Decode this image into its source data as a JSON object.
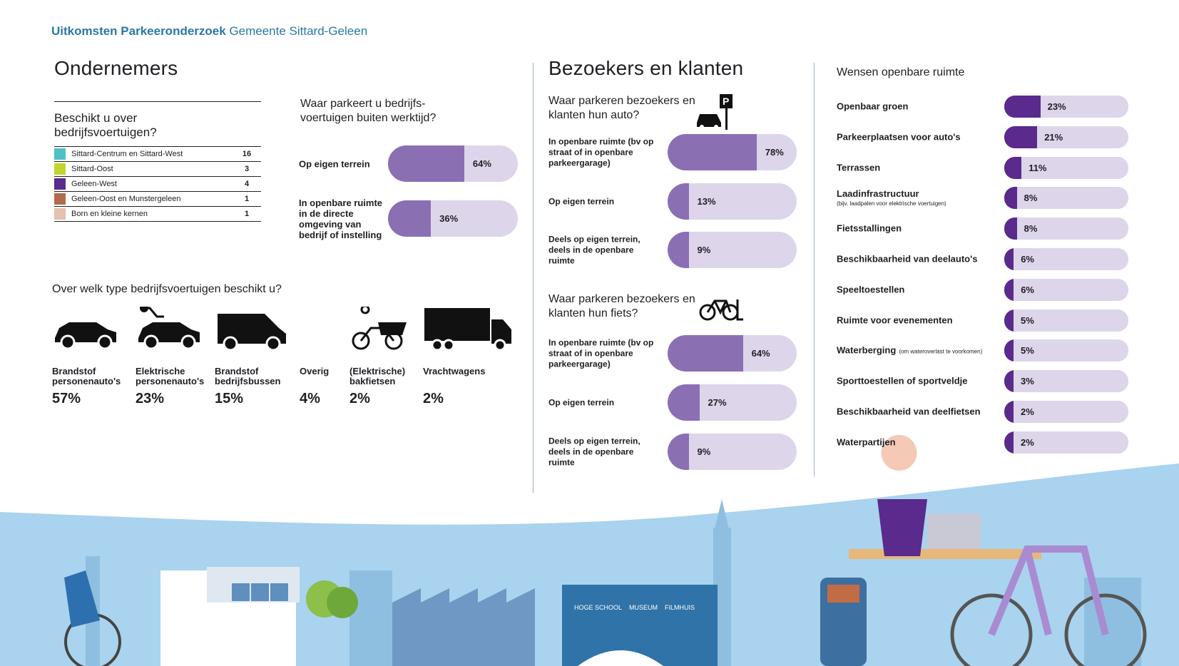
{
  "header": {
    "bold": "Uitkomsten Parkeeronderzoek",
    "normal": "Gemeente Sittard-Geleen"
  },
  "ondernemers": {
    "title": "Ondernemers",
    "q1": {
      "title": "Beschikt u over bedrijfsvoertuigen?",
      "rows": [
        {
          "label": "Sittard-Centrum en Sittard-West",
          "value": "16",
          "color": "#4fc0c4"
        },
        {
          "label": "Sittard-Oost",
          "value": "3",
          "color": "#c3d62e"
        },
        {
          "label": "Geleen-West",
          "value": "4",
          "color": "#5a2a8c"
        },
        {
          "label": "Geleen-Oost en Munstergeleen",
          "value": "1",
          "color": "#b36a4c"
        },
        {
          "label": "Born en kleine kernen",
          "value": "1",
          "color": "#e6c0b0"
        }
      ]
    },
    "q2": {
      "title": "Waar parkeert u bedrijfs-voertuigen buiten werktijd?",
      "bars": [
        {
          "label": "Op eigen terrein",
          "value": 64,
          "text": "64%"
        },
        {
          "label": "In openbare ruimte in de directe omgeving van bedrijf of instelling",
          "value": 36,
          "text": "36%"
        }
      ]
    },
    "q3": {
      "title": "Over welk type bedrijfsvoertuigen beschikt u?",
      "items": [
        {
          "label": "Brandstof personenauto's",
          "value": "57%",
          "icon": "car-icon"
        },
        {
          "label": "Elektrische personenauto's",
          "value": "23%",
          "icon": "electric-car-icon"
        },
        {
          "label": "Brandstof bedrijfsbussen",
          "value": "15%",
          "icon": "van-icon"
        },
        {
          "label": "Overig",
          "value": "4%",
          "icon": ""
        },
        {
          "label": "(Elektrische) bakfietsen",
          "value": "2%",
          "icon": "cargo-bike-icon"
        },
        {
          "label": "Vrachtwagens",
          "value": "2%",
          "icon": "truck-icon"
        }
      ]
    }
  },
  "bezoekers": {
    "title": "Bezoekers en klanten",
    "auto": {
      "title": "Waar parkeren bezoekers en klanten hun auto?",
      "icon": "parking-car-icon",
      "bars": [
        {
          "label": "In openbare ruimte (bv op straat of in openbare parkeergarage)",
          "value": 78,
          "text": "78%"
        },
        {
          "label": "Op eigen terrein",
          "value": 13,
          "text": "13%"
        },
        {
          "label": "Deels op eigen terrein, deels in de openbare ruimte",
          "value": 9,
          "text": "9%"
        }
      ]
    },
    "fiets": {
      "title": "Waar parkeren bezoekers en klanten hun fiets?",
      "icon": "bicycle-icon",
      "bars": [
        {
          "label": "In openbare ruimte (bv op straat of in openbare parkeergarage)",
          "value": 64,
          "text": "64%"
        },
        {
          "label": "Op eigen terrein",
          "value": 27,
          "text": "27%"
        },
        {
          "label": "Deels op eigen terrein, deels in de openbare ruimte",
          "value": 9,
          "text": "9%"
        }
      ]
    }
  },
  "wensen": {
    "title": "Wensen openbare ruimte",
    "rows": [
      {
        "label": "Openbaar groen",
        "note": "",
        "value": 23,
        "text": "23%"
      },
      {
        "label": "Parkeerplaatsen voor auto's",
        "note": "",
        "value": 21,
        "text": "21%"
      },
      {
        "label": "Terrassen",
        "note": "",
        "value": 11,
        "text": "11%"
      },
      {
        "label": "Laadinfrastructuur",
        "note": "(bijv. laadpalen voor elektrische voertuigen)",
        "value": 8,
        "text": "8%"
      },
      {
        "label": "Fietsstallingen",
        "note": "",
        "value": 8,
        "text": "8%"
      },
      {
        "label": "Beschikbaarheid van deelauto's",
        "note": "",
        "value": 6,
        "text": "6%"
      },
      {
        "label": "Speeltoestellen",
        "note": "",
        "value": 6,
        "text": "6%"
      },
      {
        "label": "Ruimte voor evenementen",
        "note": "",
        "value": 5,
        "text": "5%"
      },
      {
        "label": "Waterberging",
        "note": "(om wateroverlast te voorkomen)",
        "value": 5,
        "text": "5%"
      },
      {
        "label": "Sporttoestellen of sportveldje",
        "note": "",
        "value": 3,
        "text": "3%"
      },
      {
        "label": "Beschikbaarheid van deelfietsen",
        "note": "",
        "value": 2,
        "text": "2%"
      },
      {
        "label": "Waterpartijen",
        "note": "",
        "value": 2,
        "text": "2%"
      }
    ]
  },
  "illustration": {
    "signs": [
      "HOGE SCHOOL",
      "MUSEUM",
      "FILMHUIS"
    ]
  },
  "colors": {
    "header": "#2a78a8",
    "bar_mid": "#8b6fb3",
    "bar_dark": "#5a2a8c",
    "track": "#ddd5ea",
    "sky": "#a9d3ee"
  },
  "chart_data": [
    {
      "type": "bar",
      "title": "Beschikt u over bedrijfsvoertuigen?",
      "categories": [
        "Sittard-Centrum en Sittard-West",
        "Sittard-Oost",
        "Geleen-West",
        "Geleen-Oost en Munstergeleen",
        "Born en kleine kernen"
      ],
      "values": [
        16,
        3,
        4,
        1,
        1
      ]
    },
    {
      "type": "bar",
      "title": "Waar parkeert u bedrijfs-voertuigen buiten werktijd?",
      "categories": [
        "Op eigen terrein",
        "In openbare ruimte in de directe omgeving van bedrijf of instelling"
      ],
      "values": [
        64,
        36
      ]
    },
    {
      "type": "bar",
      "title": "Over welk type bedrijfsvoertuigen beschikt u?",
      "categories": [
        "Brandstof personenauto's",
        "Elektrische personenauto's",
        "Brandstof bedrijfsbussen",
        "Overig",
        "(Elektrische) bakfietsen",
        "Vrachtwagens"
      ],
      "values": [
        57,
        23,
        15,
        4,
        2,
        2
      ]
    },
    {
      "type": "bar",
      "title": "Waar parkeren bezoekers en klanten hun auto?",
      "categories": [
        "In openbare ruimte",
        "Op eigen terrein",
        "Deels op eigen terrein, deels in de openbare ruimte"
      ],
      "values": [
        78,
        13,
        9
      ]
    },
    {
      "type": "bar",
      "title": "Waar parkeren bezoekers en klanten hun fiets?",
      "categories": [
        "In openbare ruimte",
        "Op eigen terrein",
        "Deels op eigen terrein, deels in de openbare ruimte"
      ],
      "values": [
        64,
        27,
        9
      ]
    },
    {
      "type": "bar",
      "title": "Wensen openbare ruimte",
      "categories": [
        "Openbaar groen",
        "Parkeerplaatsen voor auto's",
        "Terrassen",
        "Laadinfrastructuur",
        "Fietsstallingen",
        "Beschikbaarheid van deelauto's",
        "Speeltoestellen",
        "Ruimte voor evenementen",
        "Waterberging",
        "Sporttoestellen of sportveldje",
        "Beschikbaarheid van deelfietsen",
        "Waterpartijen"
      ],
      "values": [
        23,
        21,
        11,
        8,
        8,
        6,
        6,
        5,
        5,
        3,
        2,
        2
      ]
    }
  ]
}
